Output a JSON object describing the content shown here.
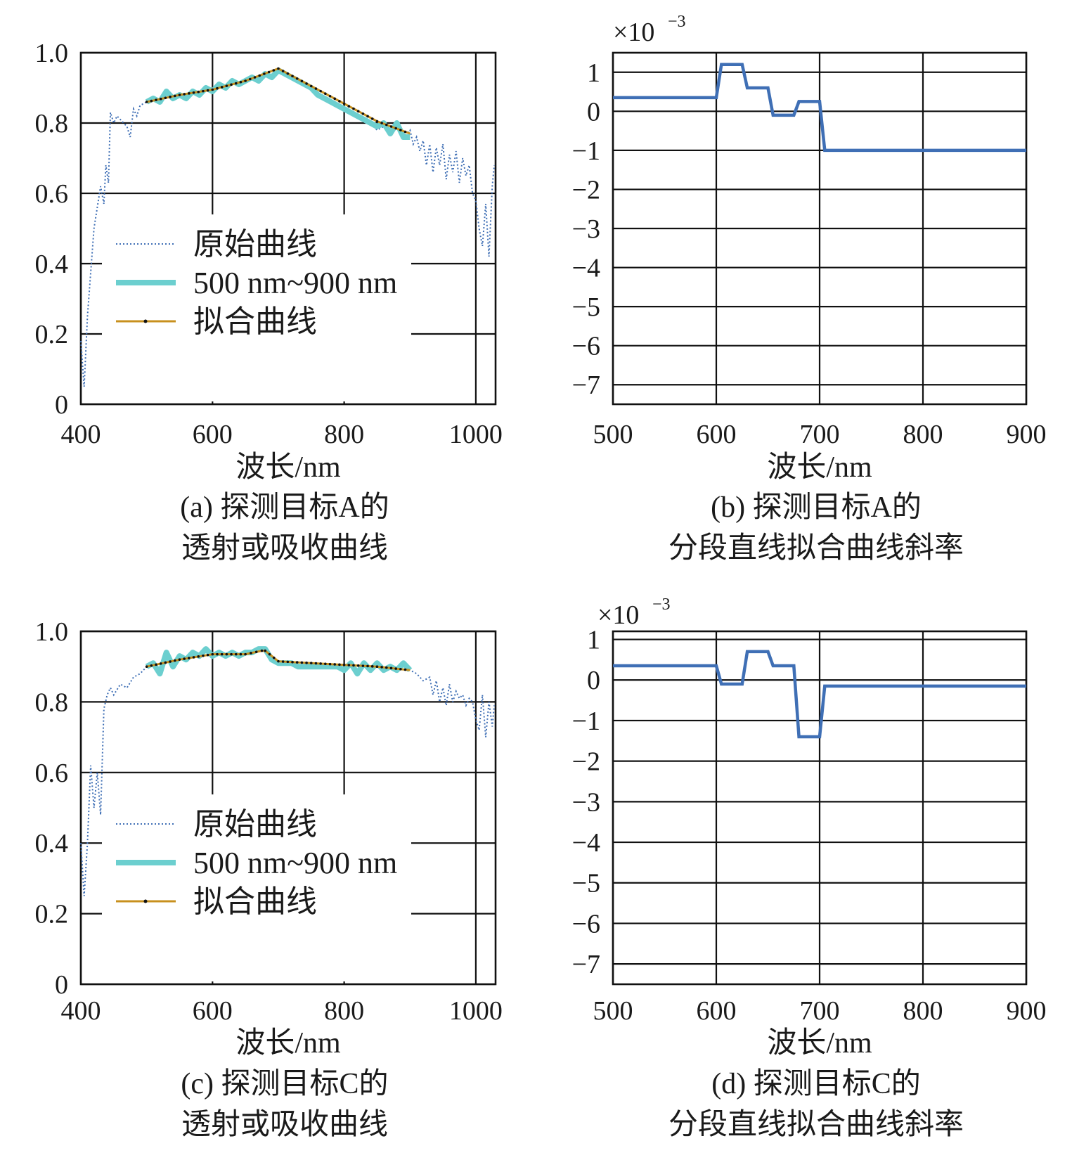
{
  "chart_data": [
    {
      "panel": "a",
      "type": "line",
      "xlabel": "波长/nm",
      "ylabel": "",
      "xlim": [
        400,
        1030
      ],
      "ylim": [
        0,
        1.0
      ],
      "xticks": [
        400,
        600,
        800,
        1000
      ],
      "xtick_labels": [
        "400",
        "600",
        "800",
        "1000"
      ],
      "yticks": [
        0,
        0.2,
        0.4,
        0.6,
        0.8,
        1.0
      ],
      "ytick_labels": [
        "0",
        "0.2",
        "0.4",
        "0.6",
        "0.8",
        "1.0"
      ],
      "grid": true,
      "legend_position": "bottom-left",
      "caption_line1": "(a) 探测目标A的",
      "caption_line2": "透射或吸收曲线",
      "series": [
        {
          "name": "原始曲线",
          "style": "dotted",
          "color": "#3f6fb5",
          "x": [
            400,
            405,
            410,
            420,
            430,
            435,
            438,
            442,
            445,
            450,
            455,
            460,
            470,
            475,
            480,
            485,
            490,
            500,
            510,
            520,
            530,
            540,
            550,
            560,
            570,
            580,
            590,
            600,
            610,
            620,
            630,
            640,
            650,
            660,
            670,
            680,
            690,
            700,
            710,
            720,
            730,
            740,
            750,
            760,
            770,
            780,
            790,
            800,
            810,
            820,
            830,
            840,
            850,
            860,
            870,
            880,
            890,
            900,
            905,
            910,
            915,
            920,
            925,
            930,
            935,
            940,
            945,
            950,
            955,
            960,
            965,
            970,
            975,
            980,
            985,
            990,
            995,
            1000,
            1005,
            1010,
            1015,
            1020,
            1025,
            1028
          ],
          "y": [
            0.18,
            0.05,
            0.25,
            0.5,
            0.62,
            0.57,
            0.68,
            0.63,
            0.83,
            0.8,
            0.82,
            0.81,
            0.79,
            0.76,
            0.84,
            0.82,
            0.85,
            0.86,
            0.87,
            0.86,
            0.88,
            0.87,
            0.88,
            0.87,
            0.89,
            0.88,
            0.9,
            0.89,
            0.91,
            0.9,
            0.92,
            0.91,
            0.92,
            0.93,
            0.92,
            0.94,
            0.93,
            0.95,
            0.94,
            0.93,
            0.92,
            0.91,
            0.9,
            0.88,
            0.87,
            0.86,
            0.85,
            0.84,
            0.83,
            0.82,
            0.81,
            0.8,
            0.78,
            0.79,
            0.77,
            0.8,
            0.76,
            0.78,
            0.74,
            0.76,
            0.72,
            0.75,
            0.68,
            0.74,
            0.66,
            0.73,
            0.68,
            0.74,
            0.64,
            0.71,
            0.66,
            0.72,
            0.63,
            0.7,
            0.65,
            0.68,
            0.6,
            0.58,
            0.5,
            0.45,
            0.57,
            0.42,
            0.62,
            0.68
          ]
        },
        {
          "name": "500 nm~900 nm",
          "style": "thick",
          "color": "#6ccfcf",
          "x": [
            500,
            510,
            520,
            530,
            540,
            550,
            560,
            570,
            580,
            590,
            600,
            610,
            620,
            630,
            640,
            650,
            660,
            670,
            680,
            690,
            700,
            710,
            720,
            730,
            740,
            750,
            760,
            770,
            780,
            790,
            800,
            810,
            820,
            830,
            840,
            850,
            860,
            870,
            880,
            890,
            900
          ],
          "y": [
            0.86,
            0.87,
            0.86,
            0.89,
            0.87,
            0.88,
            0.87,
            0.89,
            0.88,
            0.9,
            0.89,
            0.91,
            0.9,
            0.92,
            0.91,
            0.92,
            0.93,
            0.92,
            0.94,
            0.93,
            0.95,
            0.94,
            0.93,
            0.92,
            0.91,
            0.9,
            0.88,
            0.87,
            0.86,
            0.85,
            0.84,
            0.83,
            0.82,
            0.81,
            0.8,
            0.79,
            0.8,
            0.77,
            0.8,
            0.76,
            0.76
          ]
        },
        {
          "name": "拟合曲线",
          "style": "solid-markers",
          "color": "#c8901e",
          "x": [
            500,
            550,
            600,
            650,
            700,
            750,
            800,
            850,
            900
          ],
          "y": [
            0.86,
            0.88,
            0.895,
            0.92,
            0.955,
            0.905,
            0.855,
            0.805,
            0.77
          ]
        }
      ]
    },
    {
      "panel": "b",
      "type": "line",
      "xlabel": "波长/nm",
      "ylabel": "",
      "xlim": [
        500,
        900
      ],
      "ylim": [
        -7.5,
        1.5
      ],
      "xticks": [
        500,
        600,
        700,
        800,
        900
      ],
      "xtick_labels": [
        "500",
        "600",
        "700",
        "800",
        "900"
      ],
      "yticks": [
        1,
        0,
        -1,
        -2,
        -3,
        -4,
        -5,
        -6,
        -7
      ],
      "ytick_labels": [
        "1",
        "0",
        "−1",
        "−2",
        "−3",
        "−4",
        "−5",
        "−6",
        "−7"
      ],
      "y_multiplier_base": "×10",
      "y_multiplier_exp": "−3",
      "grid": true,
      "caption_line1": "(b) 探测目标A的",
      "caption_line2": "分段直线拟合曲线斜率",
      "series": [
        {
          "color": "#3f6fb5",
          "x": [
            500,
            600,
            605,
            625,
            630,
            650,
            655,
            675,
            680,
            700,
            705,
            900
          ],
          "y": [
            0.35,
            0.35,
            1.2,
            1.2,
            0.6,
            0.6,
            -0.1,
            -0.1,
            0.25,
            0.25,
            -1.0,
            -1.0
          ]
        }
      ]
    },
    {
      "panel": "c",
      "type": "line",
      "xlabel": "波长/nm",
      "ylabel": "",
      "xlim": [
        400,
        1030
      ],
      "ylim": [
        0,
        1.0
      ],
      "xticks": [
        400,
        600,
        800,
        1000
      ],
      "xtick_labels": [
        "400",
        "600",
        "800",
        "1000"
      ],
      "yticks": [
        0,
        0.2,
        0.4,
        0.6,
        0.8,
        1.0
      ],
      "ytick_labels": [
        "0",
        "0.2",
        "0.4",
        "0.6",
        "0.8",
        "1.0"
      ],
      "grid": true,
      "legend_position": "bottom-left",
      "caption_line1": "(c) 探测目标C的",
      "caption_line2": "透射或吸收曲线",
      "series": [
        {
          "name": "原始曲线",
          "style": "dotted",
          "color": "#3f6fb5",
          "x": [
            400,
            405,
            410,
            415,
            420,
            425,
            430,
            435,
            440,
            445,
            450,
            460,
            470,
            480,
            490,
            500,
            510,
            520,
            530,
            540,
            550,
            560,
            570,
            580,
            590,
            600,
            610,
            620,
            630,
            640,
            650,
            660,
            670,
            680,
            690,
            700,
            710,
            720,
            730,
            740,
            750,
            760,
            770,
            780,
            790,
            800,
            810,
            820,
            830,
            840,
            850,
            860,
            870,
            880,
            890,
            900,
            910,
            920,
            930,
            935,
            940,
            945,
            950,
            955,
            960,
            965,
            970,
            975,
            980,
            985,
            990,
            995,
            1000,
            1005,
            1010,
            1015,
            1020,
            1025,
            1028
          ],
          "y": [
            0.4,
            0.25,
            0.4,
            0.62,
            0.5,
            0.6,
            0.48,
            0.78,
            0.82,
            0.84,
            0.82,
            0.85,
            0.84,
            0.87,
            0.88,
            0.9,
            0.91,
            0.88,
            0.94,
            0.9,
            0.93,
            0.92,
            0.94,
            0.93,
            0.95,
            0.93,
            0.94,
            0.93,
            0.94,
            0.93,
            0.94,
            0.94,
            0.95,
            0.95,
            0.92,
            0.91,
            0.91,
            0.91,
            0.9,
            0.9,
            0.9,
            0.9,
            0.9,
            0.9,
            0.9,
            0.89,
            0.9,
            0.89,
            0.9,
            0.89,
            0.9,
            0.89,
            0.9,
            0.89,
            0.9,
            0.89,
            0.88,
            0.86,
            0.87,
            0.82,
            0.86,
            0.8,
            0.84,
            0.79,
            0.85,
            0.8,
            0.83,
            0.81,
            0.82,
            0.79,
            0.81,
            0.8,
            0.75,
            0.72,
            0.82,
            0.7,
            0.8,
            0.73,
            0.79
          ]
        },
        {
          "name": "500 nm~900 nm",
          "style": "thick",
          "color": "#6ccfcf",
          "x": [
            500,
            510,
            520,
            530,
            540,
            550,
            560,
            570,
            580,
            590,
            600,
            610,
            620,
            630,
            640,
            650,
            660,
            670,
            680,
            690,
            700,
            710,
            720,
            730,
            740,
            750,
            760,
            770,
            780,
            790,
            800,
            810,
            820,
            830,
            840,
            850,
            860,
            870,
            880,
            890,
            900
          ],
          "y": [
            0.9,
            0.91,
            0.88,
            0.94,
            0.9,
            0.93,
            0.92,
            0.94,
            0.93,
            0.95,
            0.93,
            0.94,
            0.93,
            0.94,
            0.93,
            0.94,
            0.94,
            0.95,
            0.95,
            0.92,
            0.91,
            0.91,
            0.91,
            0.9,
            0.9,
            0.9,
            0.9,
            0.9,
            0.9,
            0.9,
            0.89,
            0.91,
            0.88,
            0.91,
            0.89,
            0.91,
            0.89,
            0.9,
            0.89,
            0.91,
            0.89
          ]
        },
        {
          "name": "拟合曲线",
          "style": "solid-markers",
          "color": "#c8901e",
          "x": [
            500,
            550,
            600,
            650,
            675,
            680,
            700,
            750,
            800,
            850,
            900
          ],
          "y": [
            0.9,
            0.92,
            0.935,
            0.935,
            0.945,
            0.945,
            0.915,
            0.91,
            0.905,
            0.9,
            0.89
          ]
        }
      ]
    },
    {
      "panel": "d",
      "type": "line",
      "xlabel": "波长/nm",
      "ylabel": "",
      "xlim": [
        500,
        900
      ],
      "ylim": [
        -7.5,
        1.2
      ],
      "xticks": [
        500,
        600,
        700,
        800,
        900
      ],
      "xtick_labels": [
        "500",
        "600",
        "700",
        "800",
        "900"
      ],
      "yticks": [
        1,
        0,
        -1,
        -2,
        -3,
        -4,
        -5,
        -6,
        -7
      ],
      "ytick_labels": [
        "1",
        "0",
        "−1",
        "−2",
        "−3",
        "−4",
        "−5",
        "−6",
        "−7"
      ],
      "y_multiplier_base": "×10",
      "y_multiplier_exp": "−3",
      "grid": true,
      "caption_line1": "(d) 探测目标C的",
      "caption_line2": "分段直线拟合曲线斜率",
      "series": [
        {
          "color": "#3f6fb5",
          "x": [
            500,
            600,
            605,
            625,
            630,
            650,
            655,
            675,
            680,
            700,
            705,
            900
          ],
          "y": [
            0.35,
            0.35,
            -0.1,
            -0.1,
            0.7,
            0.7,
            0.35,
            0.35,
            -1.4,
            -1.4,
            -0.15,
            -0.15
          ]
        }
      ]
    }
  ]
}
